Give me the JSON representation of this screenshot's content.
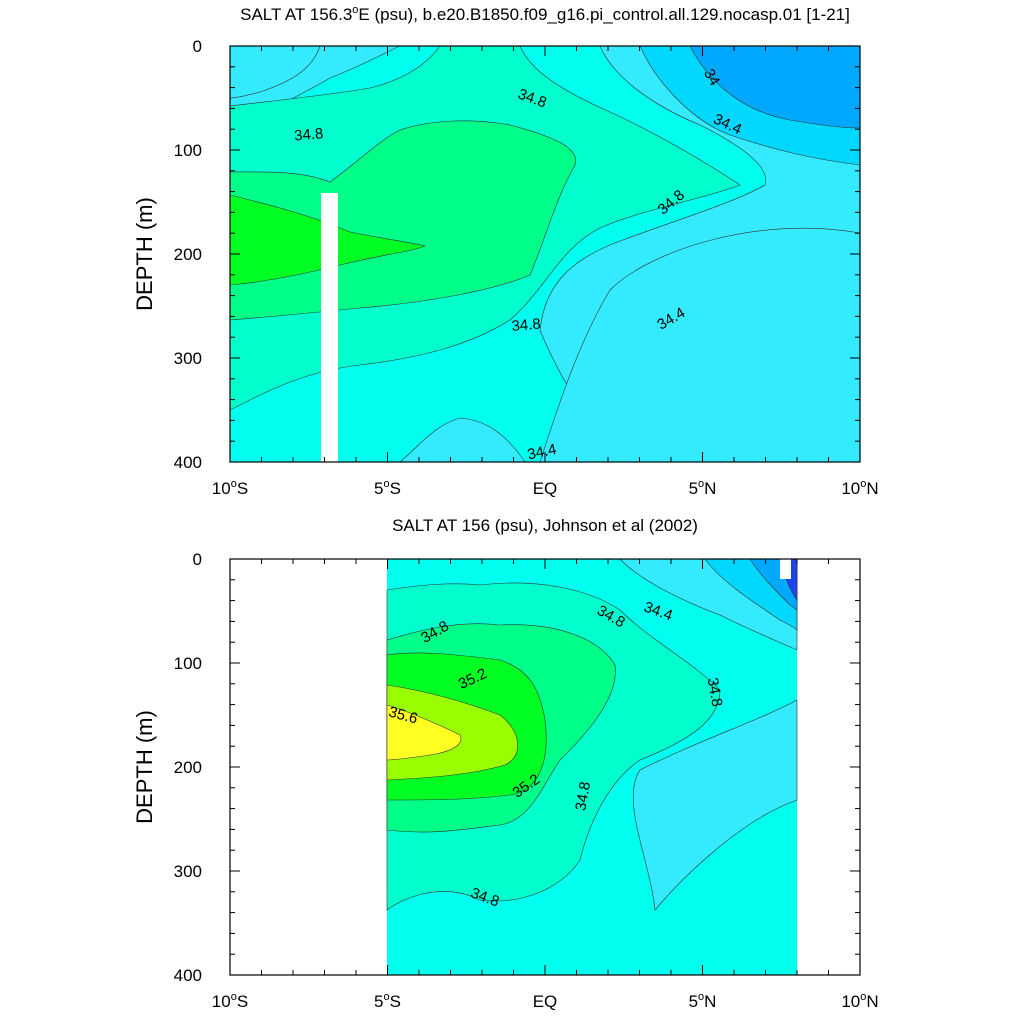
{
  "chart_data": [
    {
      "type": "contour",
      "title": "SALT AT 156.3°E (psu), b.e20.B1850.f09_g16.pi_control.all.129.nocasp.01 [1-21]",
      "title_main": "SALT AT 156.3",
      "title_sup": "o",
      "title_rest": "E (psu), b.e20.B1850.f09_g16.pi_control.all.129.nocasp.01 [1-21]",
      "ylabel": "DEPTH (m)",
      "xlabel": "",
      "xlim": [
        -10,
        10
      ],
      "ylim": [
        0,
        400
      ],
      "y_reversed": true,
      "xtick_values": [
        -10,
        -5,
        0,
        5,
        10
      ],
      "xticks": [
        [
          "10",
          "o",
          "S"
        ],
        [
          "5",
          "o",
          "S"
        ],
        [
          "EQ",
          "",
          ""
        ],
        [
          "5",
          "o",
          "N"
        ],
        [
          "10",
          "o",
          "N"
        ]
      ],
      "yticks": [
        0,
        100,
        200,
        300,
        400
      ],
      "contour_levels": [
        34.0,
        34.2,
        34.4,
        34.6,
        34.8,
        35.0,
        35.2
      ],
      "contour_labels": [
        {
          "text": "34",
          "lat": 5.3,
          "depth": 30,
          "rot": 60
        },
        {
          "text": "34.8",
          "lat": -0.4,
          "depth": 50,
          "rot": 20
        },
        {
          "text": "34.8",
          "lat": -7.5,
          "depth": 85,
          "rot": -5
        },
        {
          "text": "34.4",
          "lat": 5.8,
          "depth": 75,
          "rot": 25
        },
        {
          "text": "34.8",
          "lat": 4.0,
          "depth": 150,
          "rot": -40
        },
        {
          "text": "34.8",
          "lat": -0.6,
          "depth": 268,
          "rot": -5
        },
        {
          "text": "34.4",
          "lat": 4.0,
          "depth": 262,
          "rot": -30
        },
        {
          "text": "34.4",
          "lat": -0.1,
          "depth": 390,
          "rot": -12
        }
      ]
    },
    {
      "type": "contour",
      "title": "SALT AT 156 (psu), Johnson et al (2002)",
      "ylabel": "DEPTH (m)",
      "xlabel": "",
      "xlim": [
        -10,
        10
      ],
      "ylim": [
        0,
        400
      ],
      "y_reversed": true,
      "xtick_values": [
        -10,
        -5,
        0,
        5,
        10
      ],
      "xticks": [
        [
          "10",
          "o",
          "S"
        ],
        [
          "5",
          "o",
          "S"
        ],
        [
          "EQ",
          "",
          ""
        ],
        [
          "5",
          "o",
          "N"
        ],
        [
          "10",
          "o",
          "N"
        ]
      ],
      "yticks": [
        0,
        100,
        200,
        300,
        400
      ],
      "data_extent_lat": [
        -5,
        8
      ],
      "contour_levels": [
        34.0,
        34.2,
        34.4,
        34.6,
        34.8,
        35.0,
        35.2,
        35.4,
        35.6
      ],
      "contour_labels": [
        {
          "text": "34.8",
          "lat": -3.5,
          "depth": 70,
          "rot": -30
        },
        {
          "text": "34.8",
          "lat": 2.1,
          "depth": 55,
          "rot": 30
        },
        {
          "text": "34.4",
          "lat": 3.6,
          "depth": 50,
          "rot": 20
        },
        {
          "text": "35.2",
          "lat": -2.3,
          "depth": 115,
          "rot": -25
        },
        {
          "text": "35.6",
          "lat": -4.5,
          "depth": 150,
          "rot": 15
        },
        {
          "text": "34.8",
          "lat": 5.4,
          "depth": 128,
          "rot": 80
        },
        {
          "text": "35.2",
          "lat": -0.6,
          "depth": 218,
          "rot": -35
        },
        {
          "text": "34.8",
          "lat": 1.2,
          "depth": 228,
          "rot": -80
        },
        {
          "text": "34.8",
          "lat": -1.9,
          "depth": 325,
          "rot": 20
        }
      ]
    }
  ],
  "colors": {
    "c33_8": "#1e44f0",
    "c34_0": "#00a8ff",
    "c34_2": "#00d8ff",
    "c34_4": "#33eaff",
    "c34_6": "#00ffee",
    "c34_8": "#00ffcc",
    "c35_0": "#00ff88",
    "c35_2": "#00ff22",
    "c35_4": "#99ff00",
    "c35_6": "#ffff22"
  }
}
